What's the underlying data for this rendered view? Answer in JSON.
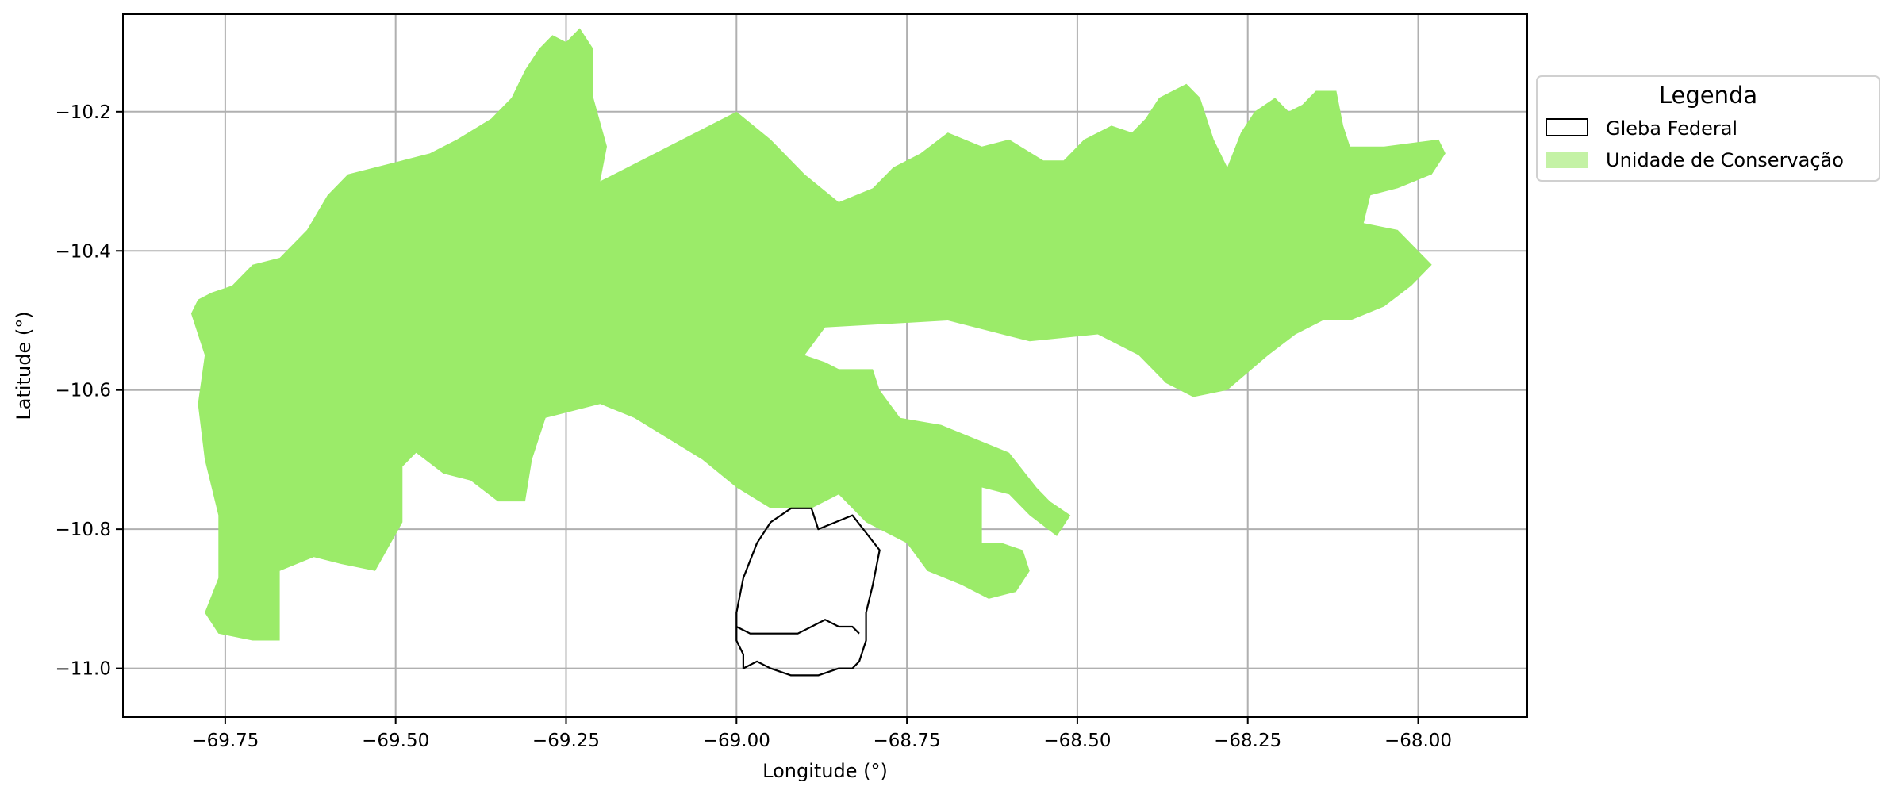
{
  "chart_data": {
    "type": "map",
    "xlabel": "Longitude (°)",
    "ylabel": "Latitude (°)",
    "xlim": [
      -69.9,
      -67.84
    ],
    "ylim": [
      -11.07,
      -10.06
    ],
    "xticks": [
      -69.75,
      -69.5,
      -69.25,
      -69.0,
      -68.75,
      -68.5,
      -68.25,
      -68.0
    ],
    "xtick_labels": [
      "−69.75",
      "−69.50",
      "−69.25",
      "−69.00",
      "−68.75",
      "−68.50",
      "−68.25",
      "−68.00"
    ],
    "yticks": [
      -10.2,
      -10.4,
      -10.6,
      -10.8,
      -11.0
    ],
    "ytick_labels": [
      "−10.2",
      "−10.4",
      "−10.6",
      "−10.8",
      "−11.0"
    ],
    "grid": true,
    "legend": {
      "title": "Legenda",
      "placement": "outside right, top",
      "entries": [
        {
          "label": "Gleba Federal",
          "style": "outline",
          "edge": "#000000",
          "fill": "none"
        },
        {
          "label": "Unidade de Conservação",
          "style": "filled",
          "fill": "#c4f2a5"
        }
      ]
    },
    "series": [
      {
        "label": "Unidade de Conservação",
        "kind": "polygon",
        "fill": "#9beb69",
        "coordinates": [
          [
            -69.8,
            -10.49
          ],
          [
            -69.79,
            -10.47
          ],
          [
            -69.77,
            -10.46
          ],
          [
            -69.74,
            -10.45
          ],
          [
            -69.71,
            -10.42
          ],
          [
            -69.67,
            -10.41
          ],
          [
            -69.63,
            -10.37
          ],
          [
            -69.6,
            -10.32
          ],
          [
            -69.57,
            -10.29
          ],
          [
            -69.53,
            -10.28
          ],
          [
            -69.49,
            -10.27
          ],
          [
            -69.45,
            -10.26
          ],
          [
            -69.41,
            -10.24
          ],
          [
            -69.36,
            -10.21
          ],
          [
            -69.33,
            -10.18
          ],
          [
            -69.31,
            -10.14
          ],
          [
            -69.29,
            -10.11
          ],
          [
            -69.27,
            -10.09
          ],
          [
            -69.25,
            -10.1
          ],
          [
            -69.23,
            -10.08
          ],
          [
            -69.21,
            -10.11
          ],
          [
            -69.21,
            -10.18
          ],
          [
            -69.19,
            -10.25
          ],
          [
            -69.2,
            -10.3
          ],
          [
            -69.0,
            -10.2
          ],
          [
            -68.95,
            -10.24
          ],
          [
            -68.9,
            -10.29
          ],
          [
            -68.85,
            -10.33
          ],
          [
            -68.8,
            -10.31
          ],
          [
            -68.77,
            -10.28
          ],
          [
            -68.73,
            -10.26
          ],
          [
            -68.69,
            -10.23
          ],
          [
            -68.64,
            -10.25
          ],
          [
            -68.6,
            -10.24
          ],
          [
            -68.55,
            -10.27
          ],
          [
            -68.52,
            -10.27
          ],
          [
            -68.49,
            -10.24
          ],
          [
            -68.45,
            -10.22
          ],
          [
            -68.42,
            -10.23
          ],
          [
            -68.4,
            -10.21
          ],
          [
            -68.38,
            -10.18
          ],
          [
            -68.34,
            -10.16
          ],
          [
            -68.32,
            -10.18
          ],
          [
            -68.3,
            -10.24
          ],
          [
            -68.28,
            -10.28
          ],
          [
            -68.26,
            -10.23
          ],
          [
            -68.24,
            -10.2
          ],
          [
            -68.21,
            -10.18
          ],
          [
            -68.19,
            -10.2
          ],
          [
            -68.17,
            -10.19
          ],
          [
            -68.15,
            -10.17
          ],
          [
            -68.12,
            -10.17
          ],
          [
            -68.11,
            -10.22
          ],
          [
            -68.1,
            -10.25
          ],
          [
            -68.05,
            -10.25
          ],
          [
            -67.97,
            -10.24
          ],
          [
            -67.96,
            -10.26
          ],
          [
            -67.98,
            -10.29
          ],
          [
            -68.03,
            -10.31
          ],
          [
            -68.07,
            -10.32
          ],
          [
            -68.08,
            -10.36
          ],
          [
            -68.03,
            -10.37
          ],
          [
            -67.98,
            -10.42
          ],
          [
            -68.01,
            -10.45
          ],
          [
            -68.05,
            -10.48
          ],
          [
            -68.1,
            -10.5
          ],
          [
            -68.14,
            -10.5
          ],
          [
            -68.18,
            -10.52
          ],
          [
            -68.22,
            -10.55
          ],
          [
            -68.28,
            -10.6
          ],
          [
            -68.33,
            -10.61
          ],
          [
            -68.37,
            -10.59
          ],
          [
            -68.41,
            -10.55
          ],
          [
            -68.47,
            -10.52
          ],
          [
            -68.57,
            -10.53
          ],
          [
            -68.65,
            -10.51
          ],
          [
            -68.69,
            -10.5
          ],
          [
            -68.87,
            -10.51
          ],
          [
            -68.9,
            -10.55
          ],
          [
            -68.87,
            -10.56
          ],
          [
            -68.85,
            -10.57
          ],
          [
            -68.8,
            -10.57
          ],
          [
            -68.79,
            -10.6
          ],
          [
            -68.76,
            -10.64
          ],
          [
            -68.7,
            -10.65
          ],
          [
            -68.65,
            -10.67
          ],
          [
            -68.6,
            -10.69
          ],
          [
            -68.56,
            -10.74
          ],
          [
            -68.54,
            -10.76
          ],
          [
            -68.51,
            -10.78
          ],
          [
            -68.53,
            -10.81
          ],
          [
            -68.57,
            -10.78
          ],
          [
            -68.6,
            -10.75
          ],
          [
            -68.64,
            -10.74
          ],
          [
            -68.64,
            -10.82
          ],
          [
            -68.61,
            -10.82
          ],
          [
            -68.58,
            -10.83
          ],
          [
            -68.57,
            -10.86
          ],
          [
            -68.59,
            -10.89
          ],
          [
            -68.63,
            -10.9
          ],
          [
            -68.67,
            -10.88
          ],
          [
            -68.72,
            -10.86
          ],
          [
            -68.75,
            -10.82
          ],
          [
            -68.81,
            -10.79
          ],
          [
            -68.85,
            -10.75
          ],
          [
            -68.89,
            -10.77
          ],
          [
            -68.95,
            -10.77
          ],
          [
            -69.0,
            -10.74
          ],
          [
            -69.05,
            -10.7
          ],
          [
            -69.1,
            -10.67
          ],
          [
            -69.15,
            -10.64
          ],
          [
            -69.2,
            -10.62
          ],
          [
            -69.24,
            -10.63
          ],
          [
            -69.28,
            -10.64
          ],
          [
            -69.3,
            -10.7
          ],
          [
            -69.31,
            -10.76
          ],
          [
            -69.35,
            -10.76
          ],
          [
            -69.39,
            -10.73
          ],
          [
            -69.43,
            -10.72
          ],
          [
            -69.47,
            -10.69
          ],
          [
            -69.49,
            -10.71
          ],
          [
            -69.49,
            -10.79
          ],
          [
            -69.53,
            -10.86
          ],
          [
            -69.58,
            -10.85
          ],
          [
            -69.62,
            -10.84
          ],
          [
            -69.67,
            -10.86
          ],
          [
            -69.67,
            -10.96
          ],
          [
            -69.71,
            -10.96
          ],
          [
            -69.76,
            -10.95
          ],
          [
            -69.78,
            -10.92
          ],
          [
            -69.76,
            -10.87
          ],
          [
            -69.76,
            -10.78
          ],
          [
            -69.78,
            -10.7
          ],
          [
            -69.79,
            -10.62
          ],
          [
            -69.78,
            -10.55
          ]
        ]
      },
      {
        "label": "Gleba Federal",
        "kind": "outline",
        "stroke": "#000000",
        "parts": [
          [
            [
              -68.92,
              -10.77
            ],
            [
              -68.89,
              -10.77
            ],
            [
              -68.88,
              -10.8
            ],
            [
              -68.83,
              -10.78
            ],
            [
              -68.79,
              -10.83
            ],
            [
              -68.8,
              -10.88
            ],
            [
              -68.81,
              -10.92
            ],
            [
              -68.81,
              -10.96
            ],
            [
              -68.82,
              -10.99
            ],
            [
              -68.83,
              -11.0
            ],
            [
              -68.85,
              -11.0
            ],
            [
              -68.88,
              -11.01
            ],
            [
              -68.92,
              -11.01
            ],
            [
              -68.95,
              -11.0
            ],
            [
              -68.97,
              -10.99
            ],
            [
              -68.99,
              -11.0
            ],
            [
              -68.99,
              -10.98
            ],
            [
              -69.0,
              -10.96
            ],
            [
              -69.0,
              -10.92
            ],
            [
              -68.99,
              -10.87
            ],
            [
              -68.97,
              -10.82
            ],
            [
              -68.95,
              -10.79
            ]
          ],
          [
            [
              -69.0,
              -10.94
            ],
            [
              -68.98,
              -10.95
            ],
            [
              -68.96,
              -10.95
            ],
            [
              -68.94,
              -10.95
            ],
            [
              -68.91,
              -10.95
            ],
            [
              -68.89,
              -10.94
            ],
            [
              -68.87,
              -10.93
            ],
            [
              -68.85,
              -10.94
            ],
            [
              -68.83,
              -10.94
            ],
            [
              -68.82,
              -10.95
            ]
          ]
        ]
      }
    ]
  }
}
